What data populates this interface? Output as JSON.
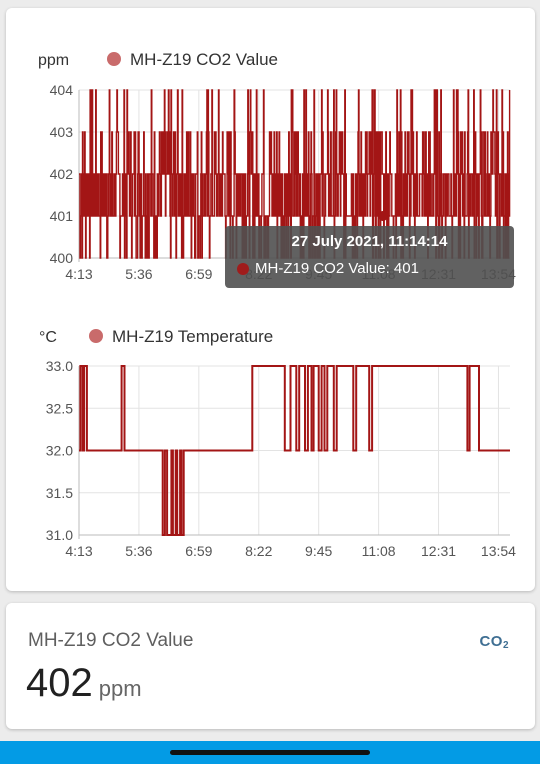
{
  "co2_chart": {
    "unit": "ppm",
    "legend": "MH-Z19 CO2 Value",
    "y_ticks": [
      "404",
      "403",
      "402",
      "401",
      "400"
    ],
    "x_ticks": [
      "4:13",
      "5:36",
      "6:59",
      "8:22",
      "9:45",
      "11:08",
      "12:31",
      "13:54"
    ],
    "series_color": "#a31515",
    "legend_color": "#c96b6b"
  },
  "temp_chart": {
    "unit": "°C",
    "legend": "MH-Z19 Temperature",
    "y_ticks": [
      "33.0",
      "32.5",
      "32.0",
      "31.5",
      "31.0"
    ],
    "x_ticks": [
      "4:13",
      "5:36",
      "6:59",
      "8:22",
      "9:45",
      "11:08",
      "12:31",
      "13:54"
    ],
    "series_color": "#a31515"
  },
  "tooltip": {
    "title": "27 July 2021, 11:14:14",
    "line": "MH-Z19 CO2 Value: 401"
  },
  "entity": {
    "name": "MH-Z19 CO2 Value",
    "icon": "co2-icon",
    "value": "402",
    "unit": "ppm"
  },
  "chart_data": [
    {
      "type": "line",
      "ylabel": "ppm",
      "ylim": [
        400,
        404
      ],
      "xlim": [
        "4:13",
        "14:10"
      ],
      "series": [
        {
          "name": "MH-Z19 CO2 Value",
          "values_range": [
            400,
            404
          ]
        }
      ],
      "grid": true,
      "legend": "top-left"
    },
    {
      "type": "line",
      "ylabel": "°C",
      "ylim": [
        31.0,
        33.0
      ],
      "xlim": [
        "4:13",
        "14:10"
      ],
      "series": [
        {
          "name": "MH-Z19 Temperature",
          "steps": [
            [
              "4:13",
              32.0
            ],
            [
              "4:15",
              33.0
            ],
            [
              "4:18",
              32.0
            ],
            [
              "4:20",
              33.0
            ],
            [
              "4:24",
              32.0
            ],
            [
              "5:12",
              33.0
            ],
            [
              "5:16",
              32.0
            ],
            [
              "6:09",
              31.0
            ],
            [
              "6:12",
              32.0
            ],
            [
              "6:15",
              31.0
            ],
            [
              "6:21",
              32.0
            ],
            [
              "6:23",
              31.0
            ],
            [
              "6:27",
              32.0
            ],
            [
              "6:29",
              31.0
            ],
            [
              "6:33",
              32.0
            ],
            [
              "6:35",
              31.0
            ],
            [
              "6:38",
              32.0
            ],
            [
              "8:13",
              33.0
            ],
            [
              "8:58",
              32.0
            ],
            [
              "9:06",
              33.0
            ],
            [
              "9:14",
              32.0
            ],
            [
              "9:18",
              33.0
            ],
            [
              "9:26",
              32.0
            ],
            [
              "9:30",
              33.0
            ],
            [
              "9:35",
              32.0
            ],
            [
              "9:38",
              33.0
            ],
            [
              "9:45",
              32.0
            ],
            [
              "9:49",
              33.0
            ],
            [
              "9:53",
              32.0
            ],
            [
              "9:57",
              33.0
            ],
            [
              "10:06",
              32.0
            ],
            [
              "10:10",
              33.0
            ],
            [
              "10:33",
              32.0
            ],
            [
              "10:37",
              33.0
            ],
            [
              "10:55",
              32.0
            ],
            [
              "10:59",
              33.0
            ],
            [
              "13:11",
              32.0
            ],
            [
              "13:14",
              33.0
            ],
            [
              "13:27",
              32.0
            ],
            [
              "14:10",
              32.0
            ]
          ]
        }
      ],
      "grid": true,
      "legend": "top-left"
    }
  ]
}
